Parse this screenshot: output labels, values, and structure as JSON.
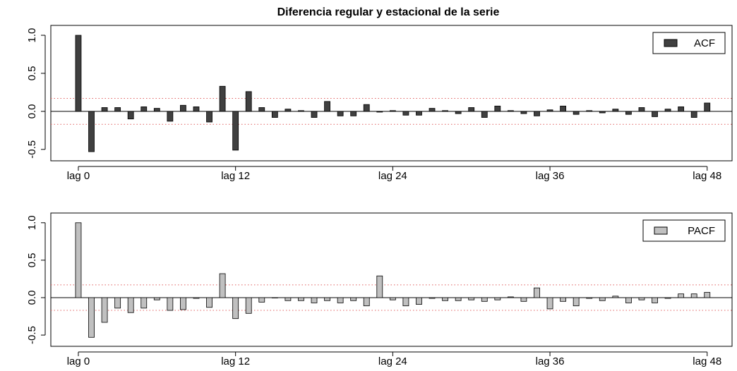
{
  "title": "Diferencia regular y estacional de la serie",
  "chart_data": [
    {
      "type": "bar",
      "series": [
        {
          "name": "ACF",
          "color": "#404040",
          "values": [
            1.0,
            -0.53,
            0.05,
            0.05,
            -0.1,
            0.06,
            0.04,
            -0.13,
            0.08,
            0.06,
            -0.14,
            0.33,
            -0.51,
            0.26,
            0.05,
            -0.08,
            0.03,
            0.01,
            -0.08,
            0.13,
            -0.06,
            -0.06,
            0.09,
            -0.01,
            0.01,
            -0.05,
            -0.05,
            0.04,
            0.01,
            -0.03,
            0.05,
            -0.08,
            0.07,
            0.01,
            -0.03,
            -0.06,
            0.02,
            0.07,
            -0.04,
            0.01,
            -0.02,
            0.03,
            -0.04,
            0.05,
            -0.07,
            0.03,
            0.06,
            -0.08,
            0.11
          ]
        }
      ],
      "x": [
        0,
        1,
        2,
        3,
        4,
        5,
        6,
        7,
        8,
        9,
        10,
        11,
        12,
        13,
        14,
        15,
        16,
        17,
        18,
        19,
        20,
        21,
        22,
        23,
        24,
        25,
        26,
        27,
        28,
        29,
        30,
        31,
        32,
        33,
        34,
        35,
        36,
        37,
        38,
        39,
        40,
        41,
        42,
        43,
        44,
        45,
        46,
        47,
        48
      ],
      "xlim": [
        -2.1,
        49.9
      ],
      "xticks": [
        {
          "value": 0,
          "label": "lag 0"
        },
        {
          "value": 12,
          "label": "lag 12"
        },
        {
          "value": 24,
          "label": "lag 24"
        },
        {
          "value": 36,
          "label": "lag 36"
        },
        {
          "value": 48,
          "label": "lag 48"
        }
      ],
      "ylim": [
        -0.65,
        1.13
      ],
      "yticks": [
        -0.5,
        {
          "value": 0,
          "label": "0.0"
        },
        0.5,
        {
          "value": 1,
          "label": "1.0"
        }
      ],
      "confidence_lines": [
        -0.17,
        0.17
      ],
      "legend": "topright"
    },
    {
      "type": "bar",
      "series": [
        {
          "name": "PACF",
          "color": "#c0c0c0",
          "values": [
            1.0,
            -0.53,
            -0.33,
            -0.14,
            -0.2,
            -0.14,
            -0.03,
            -0.17,
            -0.16,
            -0.01,
            -0.13,
            0.32,
            -0.28,
            -0.21,
            -0.06,
            0.0,
            -0.04,
            -0.04,
            -0.07,
            -0.04,
            -0.07,
            -0.04,
            -0.11,
            0.29,
            -0.03,
            -0.11,
            -0.09,
            -0.01,
            -0.04,
            -0.04,
            -0.03,
            -0.05,
            -0.03,
            0.01,
            -0.05,
            0.13,
            -0.15,
            -0.05,
            -0.11,
            -0.01,
            -0.04,
            0.02,
            -0.07,
            -0.03,
            -0.07,
            -0.01,
            0.05,
            0.05,
            0.07
          ]
        }
      ],
      "x": [
        0,
        1,
        2,
        3,
        4,
        5,
        6,
        7,
        8,
        9,
        10,
        11,
        12,
        13,
        14,
        15,
        16,
        17,
        18,
        19,
        20,
        21,
        22,
        23,
        24,
        25,
        26,
        27,
        28,
        29,
        30,
        31,
        32,
        33,
        34,
        35,
        36,
        37,
        38,
        39,
        40,
        41,
        42,
        43,
        44,
        45,
        46,
        47,
        48
      ],
      "xlim": [
        -2.1,
        49.9
      ],
      "xticks": [
        {
          "value": 0,
          "label": "lag 0"
        },
        {
          "value": 12,
          "label": "lag 12"
        },
        {
          "value": 24,
          "label": "lag 24"
        },
        {
          "value": 36,
          "label": "lag 36"
        },
        {
          "value": 48,
          "label": "lag 48"
        }
      ],
      "ylim": [
        -0.65,
        1.13
      ],
      "yticks": [
        -0.5,
        {
          "value": 0,
          "label": "0.0"
        },
        0.5,
        {
          "value": 1,
          "label": "1.0"
        }
      ],
      "confidence_lines": [
        -0.17,
        0.17
      ],
      "legend": "topright"
    }
  ]
}
